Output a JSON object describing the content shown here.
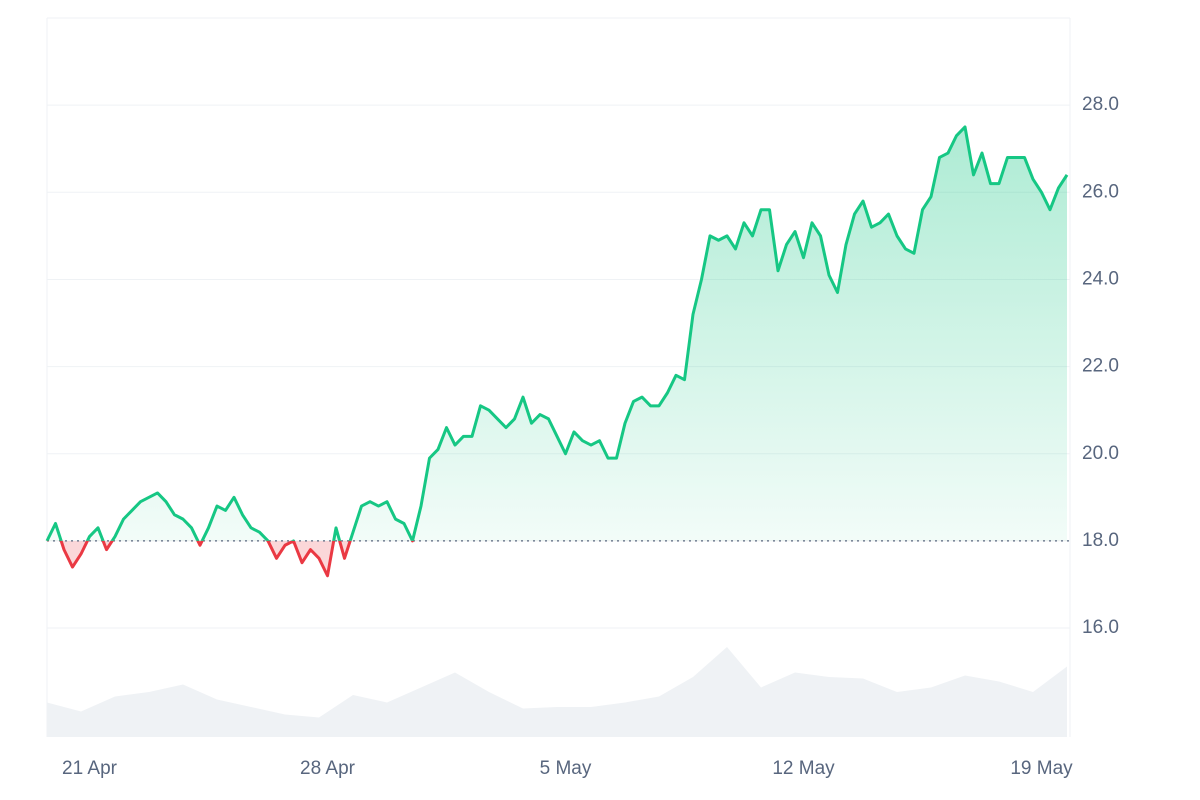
{
  "chart_data": {
    "type": "line",
    "categories": [
      null,
      null,
      null,
      null,
      null,
      "21 Apr",
      null,
      null,
      null,
      null,
      null,
      null,
      null,
      null,
      null,
      null,
      null,
      null,
      null,
      null,
      null,
      null,
      null,
      null,
      null,
      null,
      null,
      null,
      null,
      null,
      null,
      null,
      null,
      "28 Apr",
      null,
      null,
      null,
      null,
      null,
      null,
      null,
      null,
      null,
      null,
      null,
      null,
      null,
      null,
      null,
      null,
      null,
      null,
      null,
      null,
      null,
      null,
      null,
      null,
      null,
      null,
      null,
      "5 May",
      null,
      null,
      null,
      null,
      null,
      null,
      null,
      null,
      null,
      null,
      null,
      null,
      null,
      null,
      null,
      null,
      null,
      null,
      null,
      null,
      null,
      null,
      null,
      null,
      null,
      null,
      null,
      "12 May",
      null,
      null,
      null,
      null,
      null,
      null,
      null,
      null,
      null,
      null,
      null,
      null,
      null,
      null,
      null,
      null,
      null,
      null,
      null,
      null,
      null,
      null,
      null,
      null,
      null,
      null,
      null,
      "19 May",
      null,
      null,
      null
    ],
    "series": [
      {
        "values": [
          18.0,
          18.4,
          17.8,
          17.4,
          17.7,
          18.1,
          18.3,
          17.8,
          18.1,
          18.5,
          18.7,
          18.9,
          19.0,
          19.1,
          18.9,
          18.6,
          18.5,
          18.3,
          17.9,
          18.3,
          18.8,
          18.7,
          19.0,
          18.6,
          18.3,
          18.2,
          18.0,
          17.6,
          17.9,
          18.0,
          17.5,
          17.8,
          17.6,
          17.2,
          18.3,
          17.6,
          18.2,
          18.8,
          18.9,
          18.8,
          18.9,
          18.5,
          18.4,
          18.0,
          18.8,
          19.9,
          20.1,
          20.6,
          20.2,
          20.4,
          20.4,
          21.1,
          21.0,
          20.8,
          20.6,
          20.8,
          21.3,
          20.7,
          20.9,
          20.8,
          20.4,
          20.0,
          20.5,
          20.3,
          20.2,
          20.3,
          19.9,
          19.9,
          20.7,
          21.2,
          21.3,
          21.1,
          21.1,
          21.4,
          21.8,
          21.7,
          23.2,
          24.0,
          25.0,
          24.9,
          25.0,
          24.7,
          25.3,
          25.0,
          25.6,
          25.6,
          24.2,
          24.8,
          25.1,
          24.5,
          25.3,
          25.0,
          24.1,
          23.7,
          24.8,
          25.5,
          25.8,
          25.2,
          25.3,
          25.5,
          25.0,
          24.7,
          24.6,
          25.6,
          25.9,
          26.8,
          26.9,
          27.3,
          27.5,
          26.4,
          26.9,
          26.2,
          26.2,
          26.8,
          26.8,
          26.8,
          26.3,
          26.0,
          25.6,
          26.1,
          26.4
        ],
        "up_color": "#16c784",
        "down_color": "#ea3943"
      }
    ],
    "baseline": 18,
    "volume": {
      "values": [
        23,
        17,
        27,
        30,
        35,
        25,
        20,
        15,
        13,
        28,
        23,
        33,
        43,
        30,
        19,
        20,
        20,
        23,
        27,
        40,
        60,
        33,
        43,
        40,
        39,
        30,
        33,
        41,
        37,
        30,
        47
      ],
      "ylim": [
        0,
        100
      ],
      "color": "#eff2f5"
    },
    "ylim": [
      13.5,
      30
    ],
    "yticks": [
      {
        "value": 16,
        "label": "16.0"
      },
      {
        "value": 18,
        "label": "18.0"
      },
      {
        "value": 20,
        "label": "20.0"
      },
      {
        "value": 22,
        "label": "22.0"
      },
      {
        "value": 24,
        "label": "24.0"
      },
      {
        "value": 26,
        "label": "26.0"
      },
      {
        "value": 28,
        "label": "28.0"
      }
    ],
    "grid": true
  }
}
